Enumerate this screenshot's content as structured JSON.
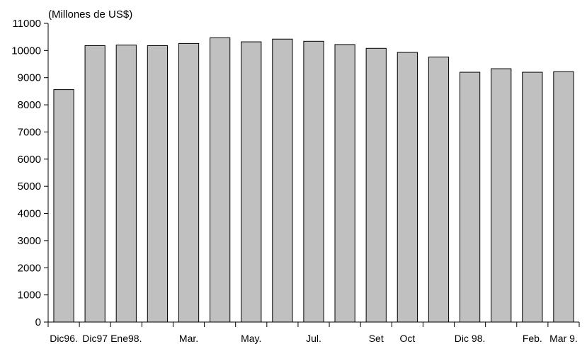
{
  "chart_data": {
    "type": "bar",
    "unit_label": "(Millones de US$)",
    "categories": [
      "Dic96.",
      "Dic97",
      "Ene98.",
      "",
      "Mar.",
      "",
      "May.",
      "",
      "Jul.",
      "",
      "Set",
      "Oct",
      "",
      "Dic 98.",
      "",
      "Feb.",
      "Mar 9."
    ],
    "values": [
      8560,
      10180,
      10200,
      10180,
      10260,
      10470,
      10320,
      10420,
      10340,
      10220,
      10080,
      9930,
      9760,
      9200,
      9330,
      9200,
      9220
    ],
    "ylim": [
      0,
      11000
    ],
    "yticks": [
      0,
      1000,
      2000,
      3000,
      4000,
      5000,
      6000,
      7000,
      8000,
      9000,
      10000,
      11000
    ],
    "grid": false,
    "colors": {
      "bar_fill": "#c0c0c0",
      "bar_stroke": "#000000",
      "axis": "#000000"
    }
  }
}
